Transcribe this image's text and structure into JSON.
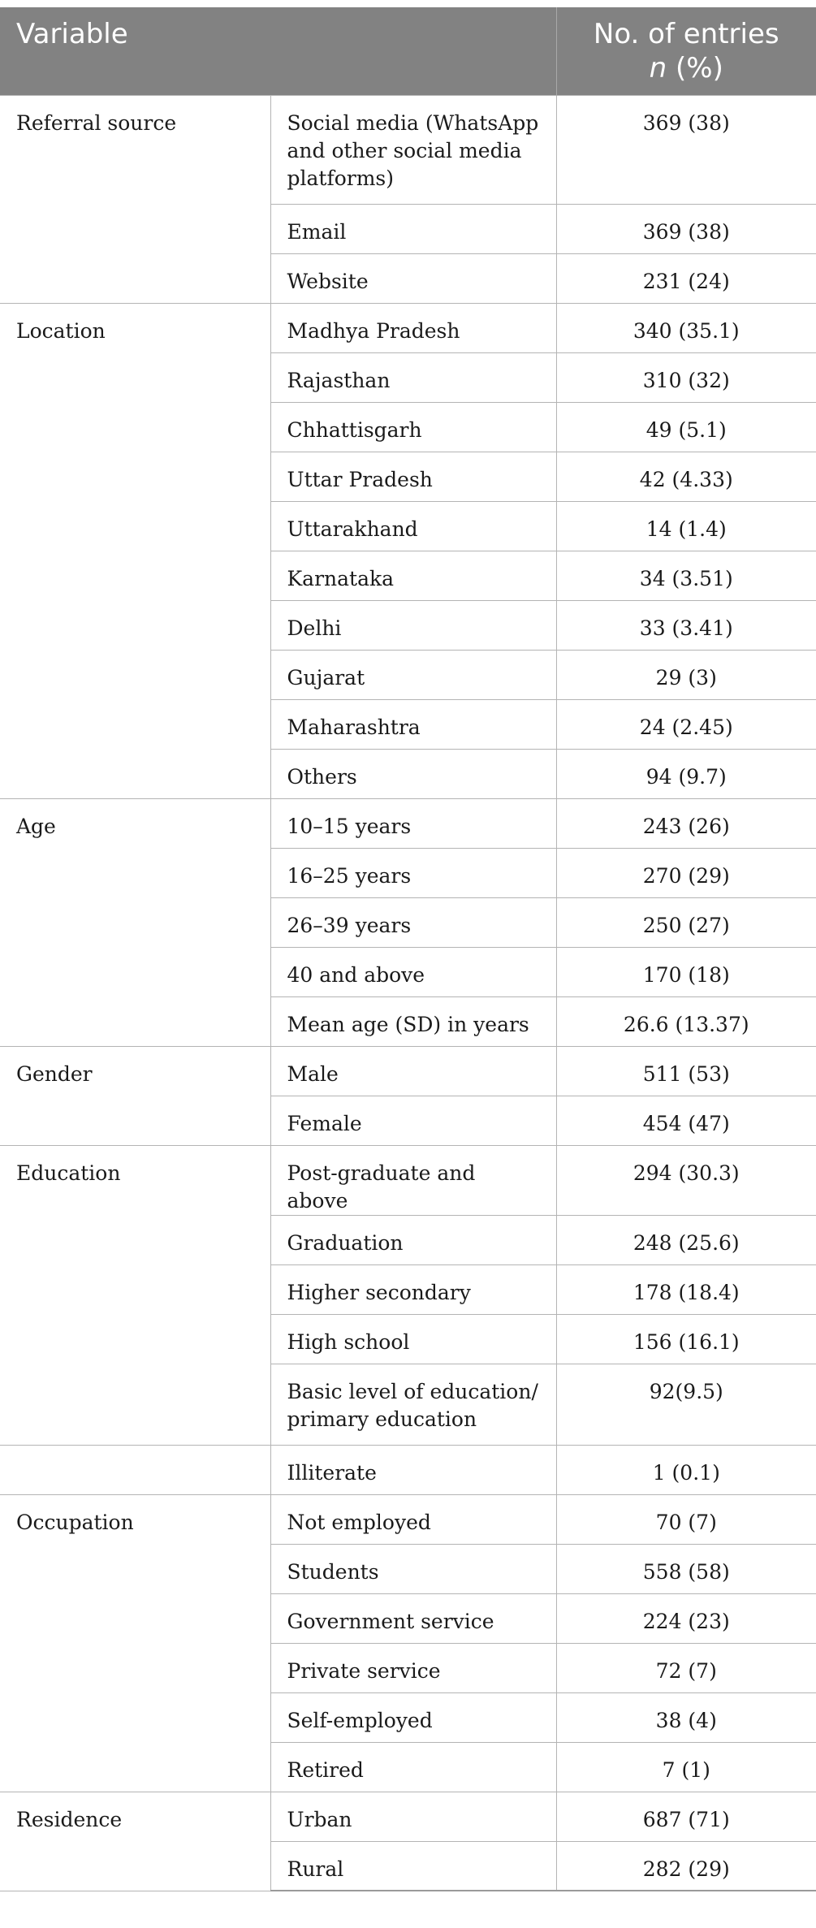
{
  "table": {
    "headers": {
      "variable": "Variable",
      "entries_line1": "No. of entries",
      "entries_n": "n",
      "entries_pct": " (%)"
    },
    "rows": [
      {
        "variable": "Referral source",
        "category": "Social media (WhatsApp and other social media platforms)",
        "value": "369 (38)"
      },
      {
        "variable": "",
        "category": "Email",
        "value": "369 (38)"
      },
      {
        "variable": "",
        "category": "Website",
        "value": "231 (24)"
      },
      {
        "variable": "Location",
        "category": "Madhya Pradesh",
        "value": "340 (35.1)"
      },
      {
        "variable": "",
        "category": "Rajasthan",
        "value": "310 (32)"
      },
      {
        "variable": "",
        "category": "Chhattisgarh",
        "value": "49 (5.1)"
      },
      {
        "variable": "",
        "category": "Uttar Pradesh",
        "value": "42 (4.33)"
      },
      {
        "variable": "",
        "category": "Uttarakhand",
        "value": "14 (1.4)"
      },
      {
        "variable": "",
        "category": "Karnataka",
        "value": "34 (3.51)"
      },
      {
        "variable": "",
        "category": "Delhi",
        "value": "33 (3.41)"
      },
      {
        "variable": "",
        "category": "Gujarat",
        "value": "29 (3)"
      },
      {
        "variable": "",
        "category": "Maharashtra",
        "value": "24 (2.45)"
      },
      {
        "variable": "",
        "category": "Others",
        "value": "94 (9.7)"
      },
      {
        "variable": "Age",
        "category": "10–15 years",
        "value": "243 (26)"
      },
      {
        "variable": "",
        "category": "16–25 years",
        "value": "270 (29)"
      },
      {
        "variable": "",
        "category": "26–39 years",
        "value": "250 (27)"
      },
      {
        "variable": "",
        "category": "40 and above",
        "value": "170 (18)"
      },
      {
        "variable": "",
        "category": "Mean age (SD) in years",
        "value": "26.6 (13.37)"
      },
      {
        "variable": "Gender",
        "category": "Male",
        "value": "511 (53)"
      },
      {
        "variable": "",
        "category": "Female",
        "value": "454 (47)"
      },
      {
        "variable": "Education",
        "category": "Post-graduate and above",
        "value": "294 (30.3)"
      },
      {
        "variable": "",
        "category": "Graduation",
        "value": "248 (25.6)"
      },
      {
        "variable": "",
        "category": "Higher secondary",
        "value": "178 (18.4)"
      },
      {
        "variable": "",
        "category": "High school",
        "value": "156 (16.1)"
      },
      {
        "variable": "",
        "category": "Basic level of education/ primary education",
        "value": "92(9.5)"
      },
      {
        "variable": "",
        "category": "Illiterate",
        "value": "1 (0.1)"
      },
      {
        "variable": "Occupation",
        "category": "Not employed",
        "value": "70 (7)"
      },
      {
        "variable": "",
        "category": "Students",
        "value": "558 (58)"
      },
      {
        "variable": "",
        "category": "Government service",
        "value": "224 (23)"
      },
      {
        "variable": "",
        "category": "Private service",
        "value": "72 (7)"
      },
      {
        "variable": "",
        "category": "Self-employed",
        "value": "38 (4)"
      },
      {
        "variable": "",
        "category": "Retired",
        "value": "7 (1)"
      },
      {
        "variable": "Residence",
        "category": "Urban",
        "value": "687 (71)"
      },
      {
        "variable": "",
        "category": "Rural",
        "value": "282 (29)"
      }
    ]
  },
  "colors": {
    "header_background": "#828282",
    "header_text": "#ffffff",
    "grid_lines": "#b4b4b4"
  }
}
